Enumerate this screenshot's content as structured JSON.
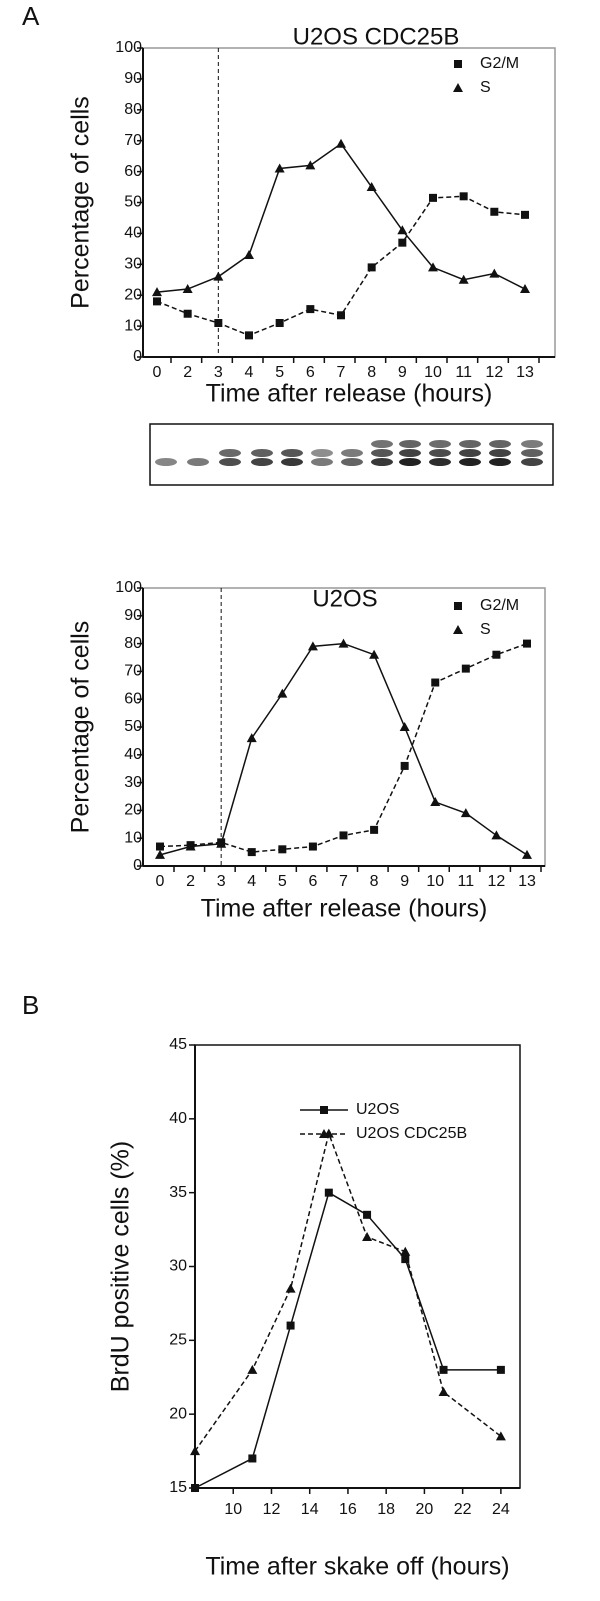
{
  "panel_labels": [
    "A",
    "B"
  ],
  "chart_data": [
    {
      "type": "line",
      "title": "U2OS CDC25B",
      "x_label": "Time after release (hours)",
      "y_label": "Percentage of cells",
      "categories": [
        "0",
        "2",
        "3",
        "4",
        "5",
        "6",
        "7",
        "8",
        "9",
        "10",
        "11",
        "12",
        "13"
      ],
      "ylim": [
        0,
        100
      ],
      "yticks": [
        0,
        10,
        20,
        30,
        40,
        50,
        60,
        70,
        80,
        90,
        100
      ],
      "reference_line": "3",
      "series": [
        {
          "name": "G2/M",
          "color": "#111111",
          "marker": "square",
          "dashed": true,
          "values": [
            18,
            14,
            11,
            7,
            11,
            15.5,
            13.5,
            29,
            37,
            51.5,
            52,
            47,
            46
          ]
        },
        {
          "name": "S",
          "color": "#111111",
          "marker": "triangle",
          "dashed": false,
          "values": [
            21,
            22,
            26,
            33,
            61,
            62,
            69,
            55,
            41,
            29,
            25,
            27,
            22
          ]
        }
      ]
    },
    {
      "type": "line",
      "title": "U2OS",
      "x_label": "Time after release (hours)",
      "y_label": "Percentage of cells",
      "categories": [
        "0",
        "2",
        "3",
        "4",
        "5",
        "6",
        "7",
        "8",
        "9",
        "10",
        "11",
        "12",
        "13"
      ],
      "ylim": [
        0,
        100
      ],
      "yticks": [
        0,
        10,
        20,
        30,
        40,
        50,
        60,
        70,
        80,
        90,
        100
      ],
      "reference_line": "3",
      "series": [
        {
          "name": "G2/M",
          "color": "#111111",
          "marker": "square",
          "dashed": true,
          "values": [
            7,
            7.5,
            8.5,
            5,
            6,
            7,
            11,
            13,
            36,
            66,
            71,
            76,
            80
          ]
        },
        {
          "name": "S",
          "color": "#111111",
          "marker": "triangle",
          "dashed": false,
          "values": [
            4,
            7,
            8,
            46,
            62,
            79,
            80,
            76,
            50,
            23,
            19,
            11,
            4
          ]
        }
      ]
    },
    {
      "type": "scatter-line",
      "x_label": "Time after skake off (hours)",
      "y_label": "BrdU positive cells (%)",
      "x": [
        8,
        11,
        13,
        15,
        17,
        19,
        21,
        24
      ],
      "xlim": [
        8,
        25
      ],
      "xticks": [
        10,
        12,
        14,
        16,
        18,
        20,
        22,
        24
      ],
      "ylim": [
        15,
        45
      ],
      "yticks": [
        15,
        20,
        25,
        30,
        35,
        40,
        45
      ],
      "series": [
        {
          "name": "U2OS",
          "color": "#111111",
          "marker": "square",
          "dashed": false,
          "values": [
            15,
            17,
            26,
            35,
            33.5,
            30.5,
            23,
            23
          ]
        },
        {
          "name": "U2OS CDC25B",
          "color": "#111111",
          "marker": "triangle",
          "dashed": true,
          "values": [
            17.5,
            23,
            28.5,
            39,
            32,
            31,
            21.5,
            18.5
          ]
        }
      ]
    }
  ]
}
